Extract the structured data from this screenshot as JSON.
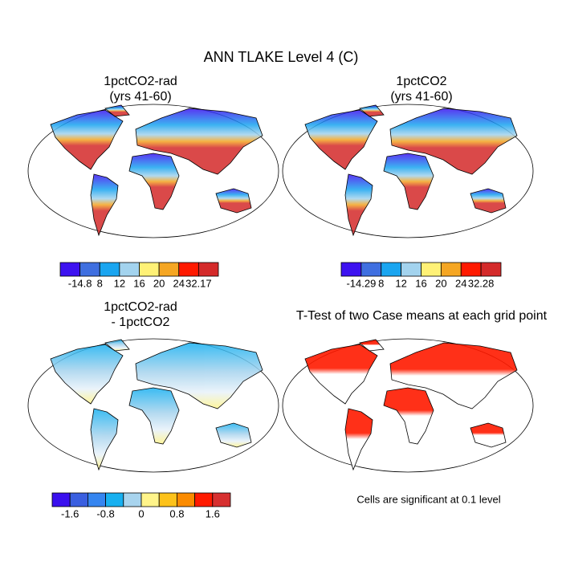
{
  "title": "ANN TLAKE Level 4 (C)",
  "panels": [
    {
      "title": [
        "1pctCO2-rad",
        "(yrs 41-60)"
      ],
      "colorbar": {
        "colors": [
          "#3d12f0",
          "#3f6fe0",
          "#1aa5f0",
          "#a3d3ee",
          "#fff176",
          "#f5a623",
          "#ff1a00",
          "#d42a2a"
        ],
        "labels": [
          "-14.8",
          "8",
          "12",
          "16",
          "20",
          "24",
          "32.17"
        ]
      }
    },
    {
      "title": [
        "1pctCO2",
        "(yrs 41-60)"
      ],
      "colorbar": {
        "colors": [
          "#3d12f0",
          "#3f6fe0",
          "#1aa5f0",
          "#a3d3ee",
          "#fff176",
          "#f5a623",
          "#ff1a00",
          "#d42a2a"
        ],
        "labels": [
          "-14.29",
          "8",
          "12",
          "16",
          "20",
          "24",
          "32.28"
        ]
      }
    },
    {
      "title": [
        "1pctCO2-rad",
        "- 1pctCO2"
      ],
      "colorbar": {
        "colors": [
          "#3a10ee",
          "#3a5fe0",
          "#3585f0",
          "#18b0f0",
          "#a8d4ee",
          "#fff48a",
          "#fdc21a",
          "#fb8b00",
          "#ff1a00",
          "#d73030"
        ],
        "labels": [
          "-1.6",
          null,
          "-0.8",
          null,
          "0",
          null,
          "0.8",
          null,
          "1.6"
        ]
      }
    },
    {
      "title": [
        "T-Test of two Case means at each grid point"
      ],
      "note": "Cells are significant at 0.1 level"
    }
  ]
}
